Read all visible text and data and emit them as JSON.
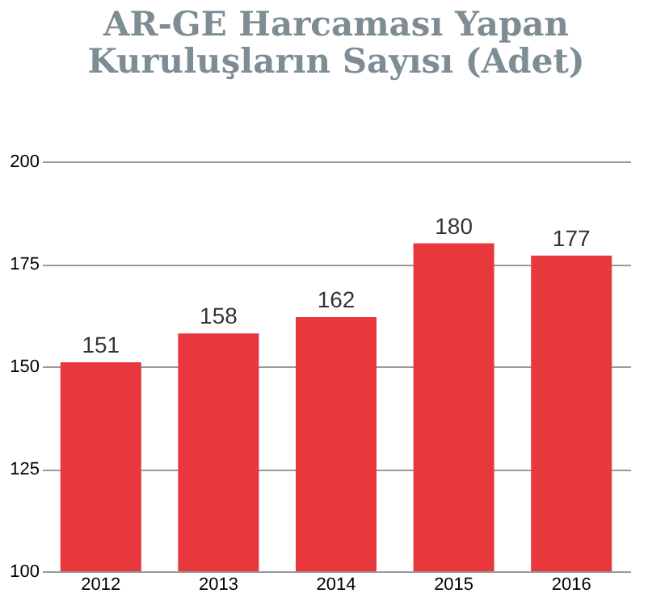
{
  "chart_data": {
    "type": "bar",
    "title": [
      "AR-GE Harcaması Yapan",
      "Kuruluşların Sayısı (Adet)"
    ],
    "categories": [
      "2012",
      "2013",
      "2014",
      "2015",
      "2016"
    ],
    "values": [
      151,
      158,
      162,
      180,
      177
    ],
    "color": "#e8383d",
    "ylim": [
      100,
      200
    ],
    "yticks": [
      100,
      125,
      150,
      175,
      200
    ],
    "grid": "y",
    "data_labels": true
  }
}
